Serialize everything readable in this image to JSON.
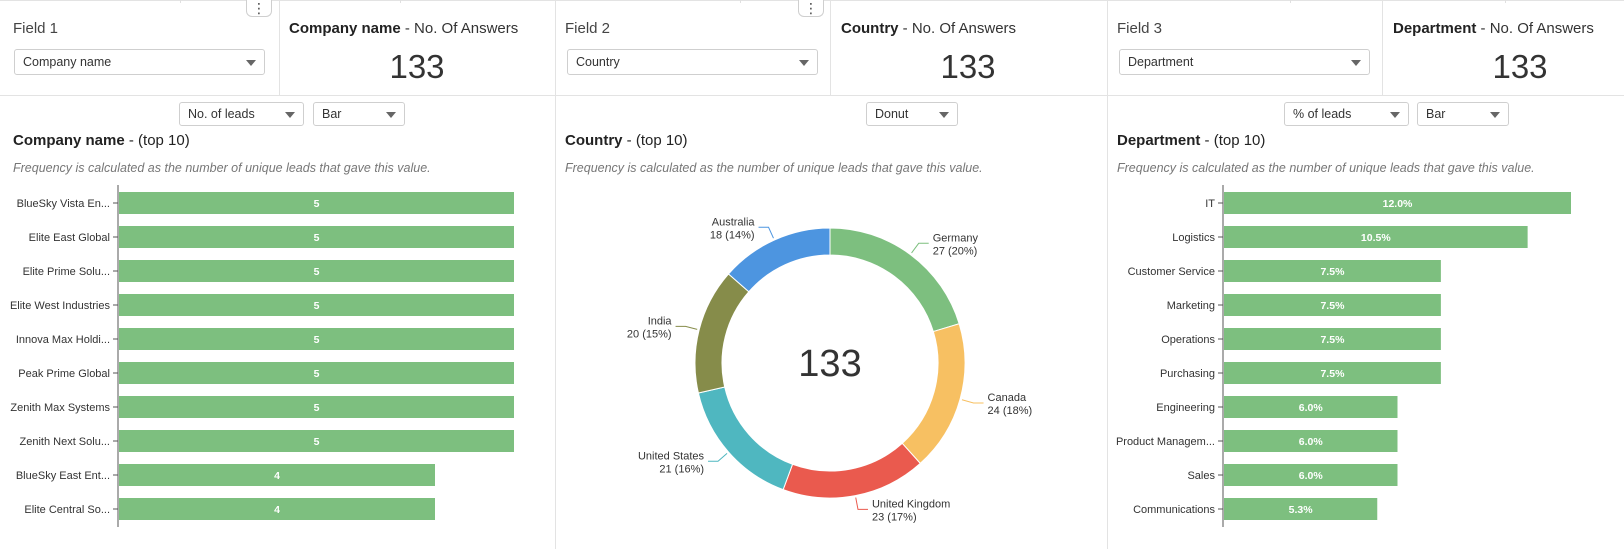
{
  "fields": [
    {
      "label": "Field 1",
      "select_value": "Company name",
      "count_title_bold": "Company name",
      "count_title_rest": " - No. Of Answers",
      "count": "133"
    },
    {
      "label": "Field 2",
      "select_value": "Country",
      "count_title_bold": "Country",
      "count_title_rest": " - No. Of Answers",
      "count": "133"
    },
    {
      "label": "Field 3",
      "select_value": "Department",
      "count_title_bold": "Department",
      "count_title_rest": " - No. Of Answers",
      "count": "133"
    }
  ],
  "panels": [
    {
      "metric_select": "No. of leads",
      "type_select": "Bar",
      "title_bold": "Company name",
      "title_rest": " - (top 10)",
      "note": "Frequency is calculated as the number of unique leads that gave this value."
    },
    {
      "type_select": "Donut",
      "title_bold": "Country",
      "title_rest": " - (top 10)",
      "note": "Frequency is calculated as the number of unique leads that gave this value."
    },
    {
      "metric_select": "% of leads",
      "type_select": "Bar",
      "title_bold": "Department ",
      "title_rest": " - (top 10)",
      "note": "Frequency is calculated as the number of unique leads that gave this value."
    }
  ],
  "colors": {
    "bar": "#7dbf7f",
    "donut": [
      "#7dbf7f",
      "#f7c062",
      "#ea5a4e",
      "#4fb7c0",
      "#868c4a",
      "#4d95e0"
    ]
  },
  "chart_data": [
    {
      "type": "bar",
      "orientation": "horizontal",
      "categories": [
        "BlueSky Vista En...",
        "Elite East Global",
        "Elite Prime Solu...",
        "Elite West Industries",
        "Innova Max Holdi...",
        "Peak Prime Global",
        "Zenith Max Systems",
        "Zenith Next Solu...",
        "BlueSky East Ent...",
        "Elite Central So..."
      ],
      "values": [
        5,
        5,
        5,
        5,
        5,
        5,
        5,
        5,
        4,
        4
      ],
      "labels": [
        "5",
        "5",
        "5",
        "5",
        "5",
        "5",
        "5",
        "5",
        "4",
        "4"
      ],
      "xlim": [
        0,
        5
      ]
    },
    {
      "type": "pie",
      "donut": true,
      "center_label": "133",
      "slices": [
        {
          "name": "Germany",
          "value": 27,
          "label": "27 (20%)"
        },
        {
          "name": "Canada",
          "value": 24,
          "label": "24 (18%)"
        },
        {
          "name": "United Kingdom",
          "value": 23,
          "label": "23 (17%)"
        },
        {
          "name": "United States",
          "value": 21,
          "label": "21 (16%)"
        },
        {
          "name": "India",
          "value": 20,
          "label": "20 (15%)"
        },
        {
          "name": "Australia",
          "value": 18,
          "label": "18 (14%)"
        }
      ]
    },
    {
      "type": "bar",
      "orientation": "horizontal",
      "categories": [
        "IT",
        "Logistics",
        "Customer Service",
        "Marketing",
        "Operations",
        "Purchasing",
        "Engineering",
        "Product Managem...",
        "Sales",
        "Communications"
      ],
      "values": [
        12.0,
        10.5,
        7.5,
        7.5,
        7.5,
        7.5,
        6.0,
        6.0,
        6.0,
        5.3
      ],
      "labels": [
        "12.0%",
        "10.5%",
        "7.5%",
        "7.5%",
        "7.5%",
        "7.5%",
        "6.0%",
        "6.0%",
        "6.0%",
        "5.3%"
      ],
      "xlim": [
        0,
        12
      ]
    }
  ]
}
